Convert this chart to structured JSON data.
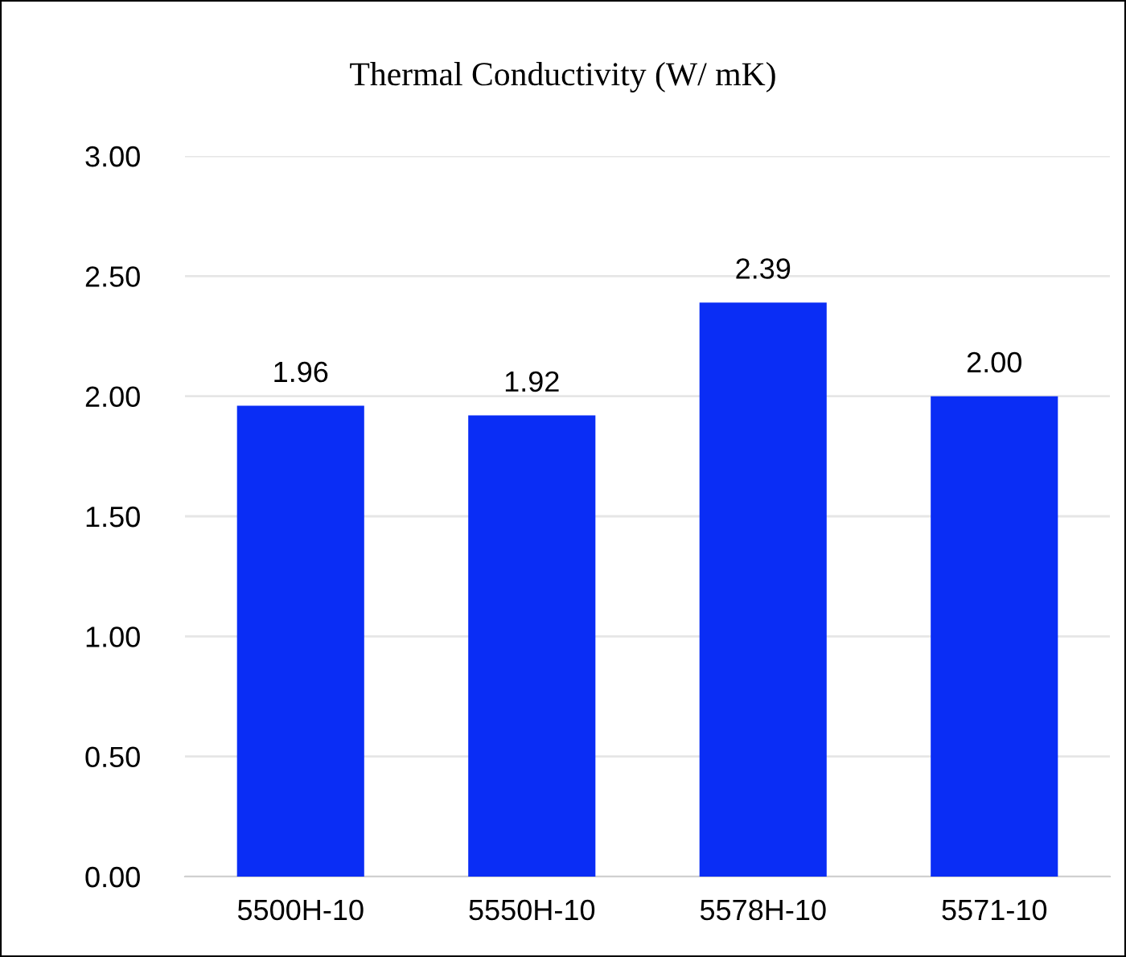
{
  "chart_data": {
    "type": "bar",
    "title": "Thermal Conductivity (W/ mK)",
    "categories": [
      "5500H-10",
      "5550H-10",
      "5578H-10",
      "5571-10"
    ],
    "values": [
      1.96,
      1.92,
      2.39,
      2.0
    ],
    "color": "#0a2df5",
    "ylim": [
      0,
      3
    ],
    "yticks": [
      {
        "value": 0,
        "label": "0.00"
      },
      {
        "value": 0.5,
        "label": "0.50"
      },
      {
        "value": 1,
        "label": "1.00"
      },
      {
        "value": 1.5,
        "label": "1.50"
      },
      {
        "value": 2,
        "label": "2.00"
      },
      {
        "value": 2.5,
        "label": "2.50"
      },
      {
        "value": 3,
        "label": "3.00"
      }
    ],
    "value_labels": [
      "1.96",
      "1.92",
      "2.39",
      "2.00"
    ],
    "grid": "y",
    "legend": false
  }
}
